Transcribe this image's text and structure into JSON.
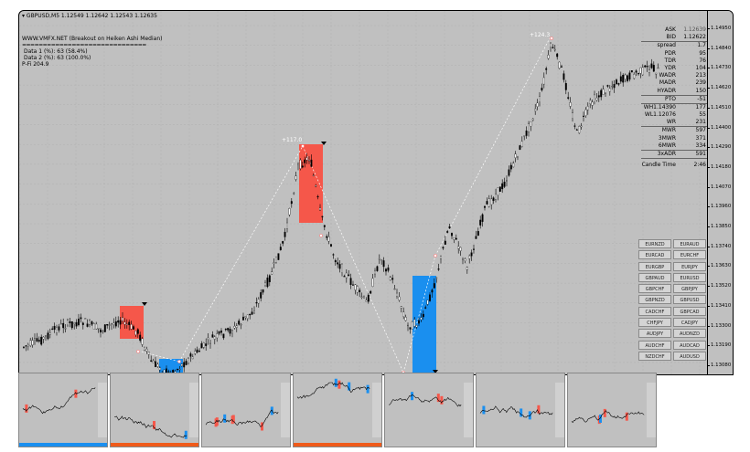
{
  "header": {
    "symbol_line": "▾ GBPUSD,M5  1.12549 1.12642 1.12543 1.12635",
    "web_title": "WWW.VMFX.NET (Breakout on Heiken Ashi Median)",
    "separator": "==============================",
    "data1": "Data 1 (%): 63 (58.4%)",
    "data2": "Data 2 (%): 63 (100.0%)",
    "pfi": "P-Fi 204.9"
  },
  "annotations": {
    "left_swing": "+117.0",
    "right_swing": "+124.3"
  },
  "info_panel": {
    "rows": [
      {
        "label": "ASK",
        "value": "1.12639",
        "cls": "ask"
      },
      {
        "label": "BID",
        "value": "1.12622",
        "cls": "boxed"
      },
      {
        "label": "spread",
        "value": "1.7",
        "cls": ""
      },
      {
        "label": "PDR",
        "value": "95",
        "cls": ""
      },
      {
        "label": "TDR",
        "value": "76",
        "cls": ""
      },
      {
        "label": "YDR",
        "value": "104",
        "cls": ""
      },
      {
        "label": "WADR",
        "value": "213",
        "cls": ""
      },
      {
        "label": "MADR",
        "value": "239",
        "cls": ""
      },
      {
        "label": "HYADR",
        "value": "150",
        "cls": "boxed"
      },
      {
        "label": "PTO",
        "value": "-51",
        "cls": "boxed"
      },
      {
        "label": "WH1.14390",
        "value": "177",
        "cls": ""
      },
      {
        "label": "WL1.12076",
        "value": "55",
        "cls": ""
      },
      {
        "label": "WR",
        "value": "231",
        "cls": "boxed"
      },
      {
        "label": "MWR",
        "value": "597",
        "cls": ""
      },
      {
        "label": "3MWR",
        "value": "371",
        "cls": ""
      },
      {
        "label": "6MWR",
        "value": "334",
        "cls": "boxed"
      },
      {
        "label": "3xADR",
        "value": "591",
        "cls": "boxed"
      },
      {
        "label": "Candle Time",
        "value": "2:46",
        "cls": ""
      }
    ]
  },
  "pairs": [
    "EURNZD",
    "EURAUD",
    "EURCAD",
    "EURCHF",
    "EURGBP",
    "EURJPY",
    "GBPAUD",
    "EURUSD",
    "GBPCHF",
    "GBPJPY",
    "GBPNZD",
    "GBPUSD",
    "CADCHF",
    "GBPCAD",
    "CHFJPY",
    "CADJPY",
    "AUDJPY",
    "AUDNZD",
    "AUDCHF",
    "AUDCAD",
    "NZDCHF",
    "AUDUSD"
  ],
  "price_axis": [
    "1.14950",
    "1.14840",
    "1.14730",
    "1.14620",
    "1.14510",
    "1.14400",
    "1.14290",
    "1.14180",
    "1.14070",
    "1.13960",
    "1.13850",
    "1.13740",
    "1.13630",
    "1.13520",
    "1.13410",
    "1.13300",
    "1.13190",
    "1.13080",
    "1.12970"
  ],
  "colors": {
    "chart_bg": "#c0c0c0",
    "bear_box": "#f5574a",
    "bull_box": "#1a8fef",
    "candle": "#000000",
    "dotted_line": "#ffffff",
    "thumb_bar_blue": "#1a8fef",
    "thumb_bar_orange": "#ef5a1a"
  },
  "thumbnails": [
    {
      "bar": "blue"
    },
    {
      "bar": "orange"
    },
    {
      "bar": "none"
    },
    {
      "bar": "orange"
    },
    {
      "bar": "none"
    },
    {
      "bar": "none"
    },
    {
      "bar": "none"
    }
  ]
}
